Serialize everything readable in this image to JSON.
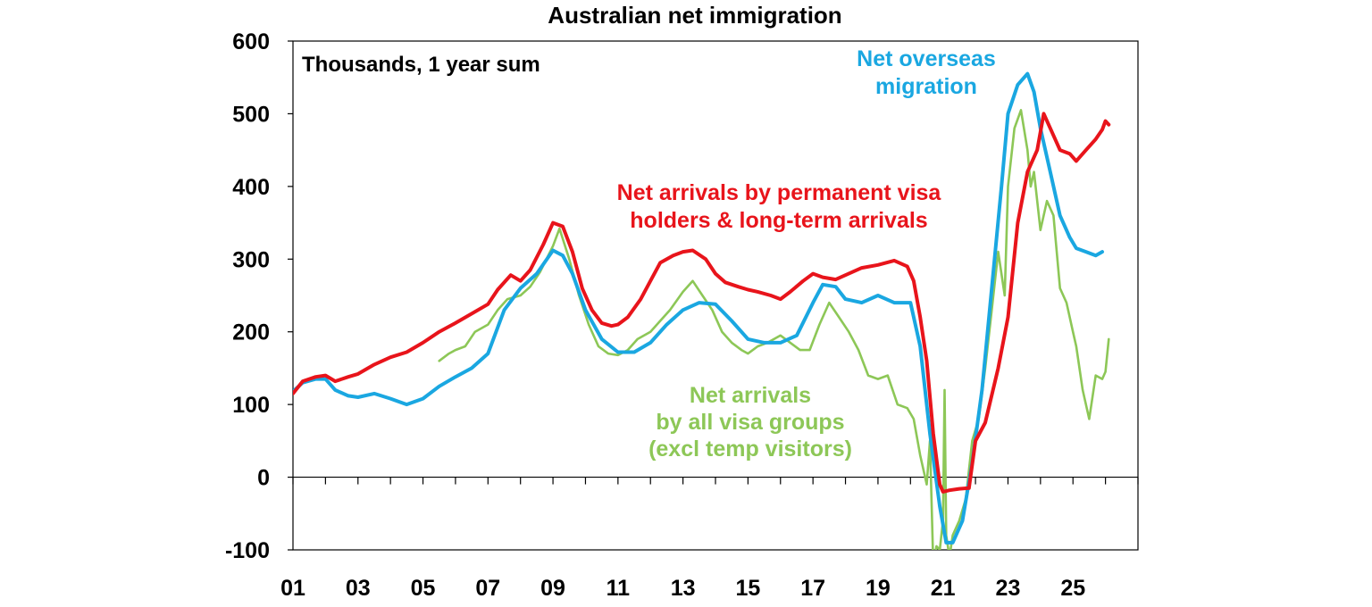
{
  "chart_data": {
    "type": "line",
    "title": "Australian net immigration",
    "unit_note": "Thousands, 1 year sum",
    "xlabel": "",
    "ylabel": "",
    "xlim": [
      2001.0,
      2027.0
    ],
    "ylim": [
      -100,
      600
    ],
    "yticks": [
      -100,
      0,
      100,
      200,
      300,
      400,
      500,
      600
    ],
    "xtick_labels": [
      "01",
      "03",
      "05",
      "07",
      "09",
      "11",
      "13",
      "15",
      "17",
      "19",
      "21",
      "23",
      "25"
    ],
    "grid": false,
    "legend": "none",
    "series": [
      {
        "key": "red",
        "color": "#e8141b",
        "label_lines": [
          "Net arrivals by permanent visa",
          "holders & long-term arrivals"
        ],
        "x": [
          2001.0,
          2001.3,
          2001.7,
          2002.0,
          2002.3,
          2002.7,
          2003.0,
          2003.5,
          2004.0,
          2004.5,
          2005.0,
          2005.5,
          2006.0,
          2006.5,
          2007.0,
          2007.3,
          2007.7,
          2008.0,
          2008.3,
          2008.7,
          2009.0,
          2009.3,
          2009.6,
          2009.9,
          2010.2,
          2010.5,
          2010.8,
          2011.0,
          2011.3,
          2011.7,
          2012.0,
          2012.3,
          2012.7,
          2013.0,
          2013.3,
          2013.7,
          2014.0,
          2014.3,
          2014.7,
          2015.0,
          2015.3,
          2015.7,
          2016.0,
          2016.3,
          2016.7,
          2017.0,
          2017.3,
          2017.7,
          2018.0,
          2018.5,
          2019.0,
          2019.5,
          2019.9,
          2020.1,
          2020.3,
          2020.5,
          2020.7,
          2020.9,
          2021.0,
          2021.2,
          2021.5,
          2021.8,
          2022.0,
          2022.3,
          2022.7,
          2023.0,
          2023.3,
          2023.6,
          2023.9,
          2024.1,
          2024.3,
          2024.6,
          2024.9,
          2025.1,
          2025.4,
          2025.7,
          2025.9,
          2026.0,
          2026.1
        ],
        "y": [
          115,
          132,
          138,
          140,
          132,
          138,
          142,
          155,
          165,
          172,
          185,
          200,
          212,
          225,
          238,
          258,
          278,
          270,
          285,
          320,
          350,
          345,
          310,
          260,
          230,
          212,
          208,
          210,
          220,
          245,
          270,
          295,
          305,
          310,
          312,
          300,
          280,
          268,
          262,
          258,
          255,
          250,
          245,
          255,
          270,
          280,
          275,
          272,
          278,
          288,
          292,
          298,
          290,
          270,
          220,
          160,
          60,
          -10,
          -20,
          -18,
          -16,
          -15,
          50,
          75,
          150,
          220,
          350,
          420,
          450,
          500,
          480,
          450,
          445,
          435,
          450,
          465,
          478,
          490,
          485
        ]
      },
      {
        "key": "blue",
        "color": "#1aa7e1",
        "label_lines": [
          "Net overseas",
          "migration"
        ],
        "x": [
          2001.0,
          2001.3,
          2001.7,
          2002.0,
          2002.3,
          2002.7,
          2003.0,
          2003.5,
          2004.0,
          2004.5,
          2005.0,
          2005.5,
          2006.0,
          2006.5,
          2007.0,
          2007.5,
          2008.0,
          2008.5,
          2009.0,
          2009.3,
          2009.6,
          2010.0,
          2010.5,
          2011.0,
          2011.5,
          2012.0,
          2012.5,
          2013.0,
          2013.5,
          2014.0,
          2014.5,
          2015.0,
          2015.5,
          2016.0,
          2016.5,
          2017.0,
          2017.3,
          2017.7,
          2018.0,
          2018.5,
          2019.0,
          2019.5,
          2020.0,
          2020.3,
          2020.6,
          2020.9,
          2021.1,
          2021.3,
          2021.6,
          2021.9,
          2022.2,
          2022.5,
          2022.8,
          2023.0,
          2023.3,
          2023.6,
          2023.8,
          2024.0,
          2024.3,
          2024.6,
          2024.9,
          2025.1,
          2025.4,
          2025.7,
          2025.9
        ],
        "y": [
          118,
          130,
          135,
          135,
          120,
          112,
          110,
          115,
          108,
          100,
          108,
          125,
          138,
          150,
          170,
          230,
          260,
          280,
          312,
          305,
          280,
          230,
          190,
          172,
          172,
          185,
          210,
          230,
          240,
          238,
          215,
          190,
          185,
          185,
          195,
          240,
          265,
          262,
          245,
          240,
          250,
          240,
          240,
          180,
          60,
          -40,
          -90,
          -90,
          -60,
          20,
          120,
          260,
          400,
          500,
          540,
          555,
          530,
          480,
          420,
          360,
          330,
          315,
          310,
          305,
          310
        ]
      },
      {
        "key": "green",
        "color": "#8dc757",
        "label_lines": [
          "Net arrivals",
          "by all visa groups",
          "(excl temp visitors)"
        ],
        "x": [
          2005.5,
          2005.8,
          2006.0,
          2006.3,
          2006.6,
          2007.0,
          2007.3,
          2007.6,
          2008.0,
          2008.3,
          2008.6,
          2009.0,
          2009.2,
          2009.5,
          2009.8,
          2010.1,
          2010.4,
          2010.7,
          2011.0,
          2011.3,
          2011.6,
          2012.0,
          2012.3,
          2012.6,
          2013.0,
          2013.3,
          2013.6,
          2013.9,
          2014.2,
          2014.5,
          2014.8,
          2015.0,
          2015.3,
          2015.6,
          2016.0,
          2016.3,
          2016.6,
          2016.9,
          2017.2,
          2017.5,
          2017.8,
          2018.1,
          2018.4,
          2018.7,
          2019.0,
          2019.3,
          2019.6,
          2019.9,
          2020.1,
          2020.3,
          2020.5,
          2020.6,
          2020.7,
          2020.8,
          2020.9,
          2021.0,
          2021.05,
          2021.1,
          2021.2,
          2021.3,
          2021.5,
          2021.7,
          2021.9,
          2022.1,
          2022.3,
          2022.5,
          2022.7,
          2022.9,
          2023.0,
          2023.2,
          2023.4,
          2023.6,
          2023.7,
          2023.8,
          2024.0,
          2024.2,
          2024.4,
          2024.6,
          2024.8,
          2025.0,
          2025.1,
          2025.3,
          2025.5,
          2025.7,
          2025.9,
          2026.0,
          2026.1
        ],
        "y": [
          160,
          170,
          175,
          180,
          200,
          210,
          230,
          245,
          250,
          262,
          282,
          318,
          342,
          300,
          250,
          210,
          180,
          170,
          168,
          175,
          190,
          200,
          215,
          230,
          255,
          270,
          250,
          230,
          200,
          185,
          175,
          170,
          180,
          185,
          195,
          185,
          175,
          175,
          210,
          240,
          220,
          200,
          175,
          140,
          135,
          140,
          100,
          95,
          80,
          30,
          -10,
          50,
          -120,
          -95,
          -100,
          -60,
          120,
          -80,
          -110,
          -80,
          -60,
          -30,
          50,
          80,
          150,
          230,
          310,
          250,
          400,
          480,
          505,
          450,
          400,
          420,
          340,
          380,
          360,
          260,
          240,
          200,
          180,
          120,
          80,
          140,
          135,
          145,
          190
        ]
      }
    ]
  }
}
